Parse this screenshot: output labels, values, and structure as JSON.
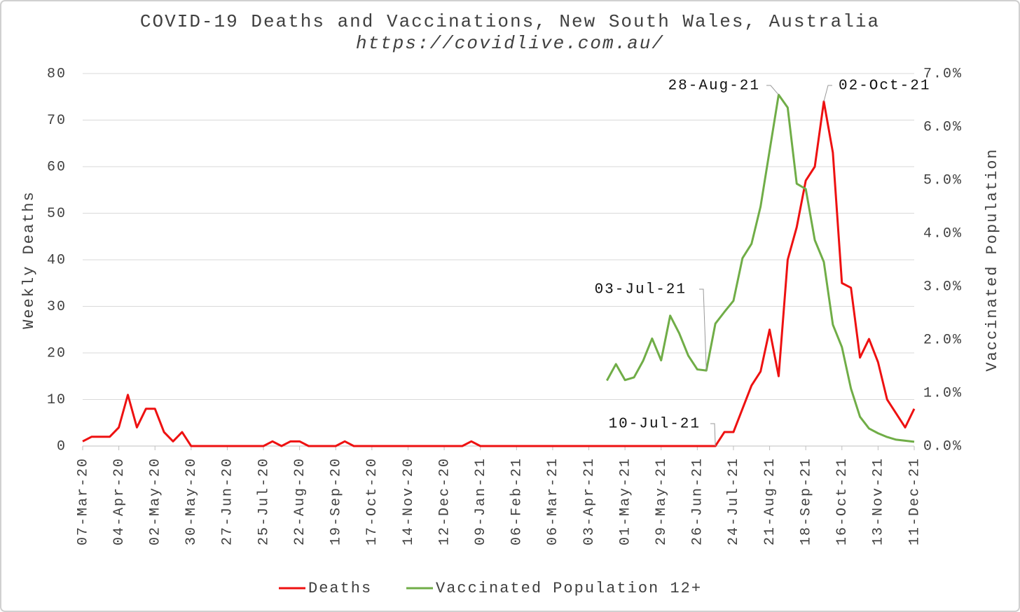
{
  "chart_data": {
    "type": "line",
    "title": "COVID-19 Deaths and Vaccinations, New South Wales, Australia",
    "subtitle": "https://covidlive.com.au/",
    "y_label": "Weekly Deaths",
    "y2_label": "Vaccinated Population",
    "categories": [
      "07-Mar-20",
      null,
      null,
      null,
      "04-Apr-20",
      null,
      null,
      null,
      "02-May-20",
      null,
      null,
      null,
      "30-May-20",
      null,
      null,
      null,
      "27-Jun-20",
      null,
      null,
      null,
      "25-Jul-20",
      null,
      null,
      null,
      "22-Aug-20",
      null,
      null,
      null,
      "19-Sep-20",
      null,
      null,
      null,
      "17-Oct-20",
      null,
      null,
      null,
      "14-Nov-20",
      null,
      null,
      null,
      "12-Dec-20",
      null,
      null,
      null,
      "09-Jan-21",
      null,
      null,
      null,
      "06-Feb-21",
      null,
      null,
      null,
      "06-Mar-21",
      null,
      null,
      null,
      "03-Apr-21",
      null,
      null,
      null,
      "01-May-21",
      null,
      null,
      null,
      "29-May-21",
      null,
      null,
      null,
      "26-Jun-21",
      null,
      null,
      null,
      "24-Jul-21",
      null,
      null,
      null,
      "21-Aug-21",
      null,
      null,
      null,
      "18-Sep-21",
      null,
      null,
      null,
      "16-Oct-21",
      null,
      null,
      null,
      "13-Nov-21",
      null,
      null,
      null,
      "11-Dec-21"
    ],
    "series": [
      {
        "name": "Deaths",
        "color": "#ee1111",
        "axis": "y",
        "values": [
          1,
          2,
          2,
          2,
          4,
          11,
          4,
          8,
          8,
          3,
          1,
          3,
          0,
          0,
          0,
          0,
          0,
          0,
          0,
          0,
          0,
          1,
          0,
          1,
          1,
          0,
          0,
          0,
          0,
          1,
          0,
          0,
          0,
          0,
          0,
          0,
          0,
          0,
          0,
          0,
          0,
          0,
          0,
          1,
          0,
          0,
          0,
          0,
          0,
          0,
          0,
          0,
          0,
          0,
          0,
          0,
          0,
          0,
          0,
          0,
          0,
          0,
          0,
          0,
          0,
          0,
          0,
          0,
          0,
          0,
          0,
          3,
          3,
          8,
          13,
          16,
          25,
          15,
          40,
          47,
          57,
          60,
          74,
          63,
          35,
          34,
          19,
          23,
          18,
          10,
          7,
          4,
          8
        ]
      },
      {
        "name": "Vaccinated Population 12+",
        "color": "#70ad47",
        "axis": "y2",
        "values": [
          null,
          null,
          null,
          null,
          null,
          null,
          null,
          null,
          null,
          null,
          null,
          null,
          null,
          null,
          null,
          null,
          null,
          null,
          null,
          null,
          null,
          null,
          null,
          null,
          null,
          null,
          null,
          null,
          null,
          null,
          null,
          null,
          null,
          null,
          null,
          null,
          null,
          null,
          null,
          null,
          null,
          null,
          null,
          null,
          null,
          null,
          null,
          null,
          null,
          null,
          null,
          null,
          null,
          null,
          null,
          null,
          null,
          null,
          1.23,
          1.54,
          1.24,
          1.29,
          1.6,
          2.02,
          1.61,
          2.45,
          2.12,
          1.7,
          1.44,
          1.42,
          2.3,
          2.52,
          2.73,
          3.53,
          3.8,
          4.5,
          5.55,
          6.6,
          6.36,
          4.93,
          4.83,
          3.87,
          3.46,
          2.28,
          1.86,
          1.08,
          0.55,
          0.33,
          0.24,
          0.17,
          0.12,
          0.1,
          0.08
        ]
      }
    ],
    "ylim": [
      0,
      80
    ],
    "yticks": [
      0,
      10,
      20,
      30,
      40,
      50,
      60,
      70,
      80
    ],
    "y2lim": [
      0,
      7
    ],
    "y2ticks": [
      {
        "value": 0,
        "label": "0.0%"
      },
      {
        "value": 1,
        "label": "1.0%"
      },
      {
        "value": 2,
        "label": "2.0%"
      },
      {
        "value": 3,
        "label": "3.0%"
      },
      {
        "value": 4,
        "label": "4.0%"
      },
      {
        "value": 5,
        "label": "5.0%"
      },
      {
        "value": 6,
        "label": "6.0%"
      },
      {
        "value": 7,
        "label": "7.0%"
      }
    ],
    "grid": true,
    "legend": "bottom",
    "annotations": [
      {
        "text": "28-Aug-21",
        "series": 1,
        "index": 77
      },
      {
        "text": "02-Oct-21",
        "series": 0,
        "index": 82
      },
      {
        "text": "03-Jul-21",
        "series": 1,
        "index": 69
      },
      {
        "text": "10-Jul-21",
        "series": 0,
        "index": 70
      }
    ]
  }
}
